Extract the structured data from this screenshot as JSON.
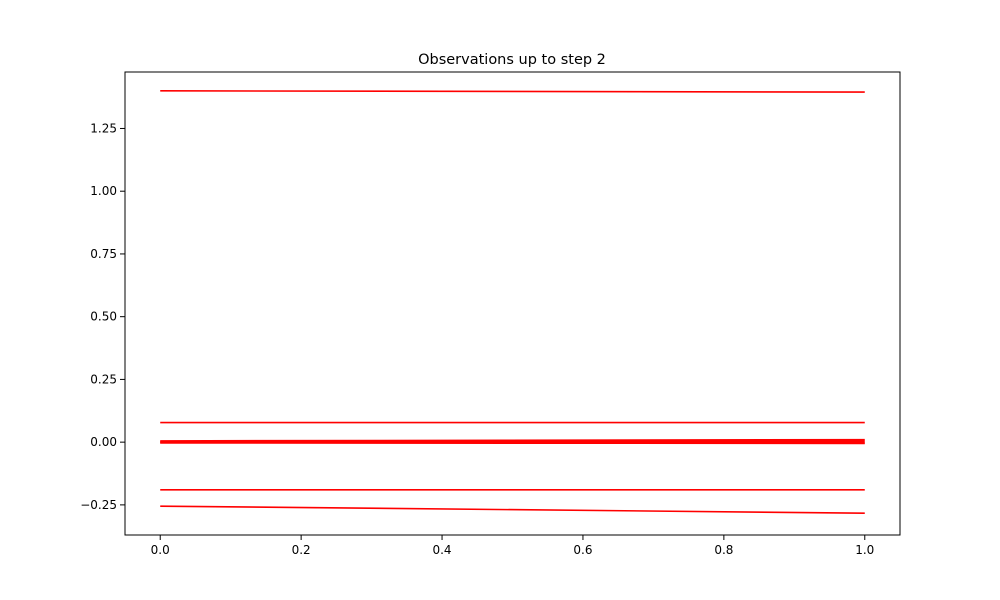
{
  "chart_data": {
    "type": "line",
    "title": "Observations up to step 2",
    "xlabel": "",
    "ylabel": "",
    "xlim": [
      -0.05,
      1.05
    ],
    "ylim": [
      -0.37,
      1.475
    ],
    "grid": false,
    "legend": "none",
    "line_color": "#ff0000",
    "x": [
      0.0,
      1.0
    ],
    "x_ticks": [
      {
        "value": 0.0,
        "label": "0.0"
      },
      {
        "value": 0.2,
        "label": "0.2"
      },
      {
        "value": 0.4,
        "label": "0.4"
      },
      {
        "value": 0.6,
        "label": "0.6"
      },
      {
        "value": 0.8,
        "label": "0.8"
      },
      {
        "value": 1.0,
        "label": "1.0"
      }
    ],
    "y_ticks": [
      {
        "value": -0.25,
        "label": "−0.25"
      },
      {
        "value": 0.0,
        "label": "0.00"
      },
      {
        "value": 0.25,
        "label": "0.25"
      },
      {
        "value": 0.5,
        "label": "0.50"
      },
      {
        "value": 0.75,
        "label": "0.75"
      },
      {
        "value": 1.0,
        "label": "1.00"
      },
      {
        "value": 1.25,
        "label": "1.25"
      }
    ],
    "series": [
      {
        "values": [
          1.4,
          1.395
        ]
      },
      {
        "values": [
          0.078,
          0.078
        ]
      },
      {
        "values": [
          0.005,
          0.01
        ]
      },
      {
        "values": [
          0.002,
          0.004
        ]
      },
      {
        "values": [
          -0.001,
          -0.002
        ]
      },
      {
        "values": [
          -0.003,
          -0.005
        ]
      },
      {
        "values": [
          -0.19,
          -0.19
        ]
      },
      {
        "values": [
          -0.255,
          -0.283
        ]
      }
    ]
  }
}
